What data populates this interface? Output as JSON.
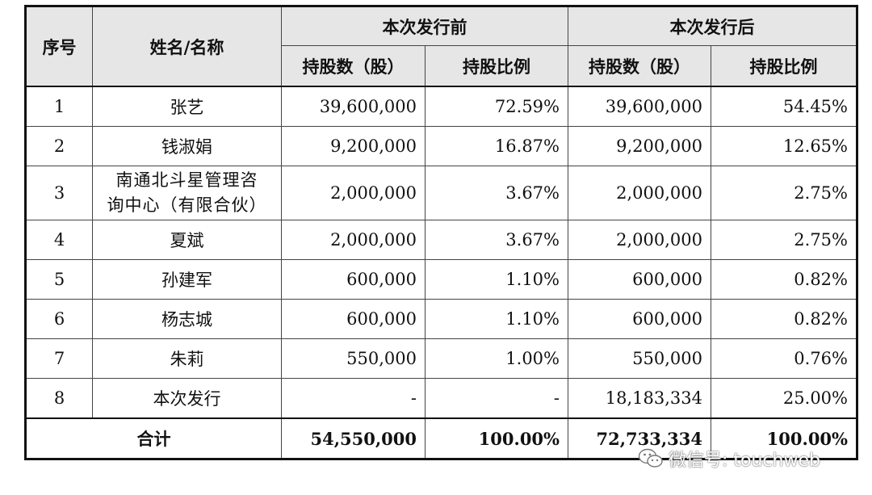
{
  "table": {
    "headers": {
      "index": "序号",
      "name": "姓名/名称",
      "before_group": "本次发行前",
      "after_group": "本次发行后",
      "shares_col": "持股数（股）",
      "ratio_col": "持股比例"
    },
    "rows": [
      {
        "no": "1",
        "name": "张艺",
        "before_shares": "39,600,000",
        "before_ratio": "72.59%",
        "after_shares": "39,600,000",
        "after_ratio": "54.45%"
      },
      {
        "no": "2",
        "name": "钱淑娟",
        "before_shares": "9,200,000",
        "before_ratio": "16.87%",
        "after_shares": "9,200,000",
        "after_ratio": "12.65%"
      },
      {
        "no": "3",
        "name_line1": "南通北斗星管理咨",
        "name_line2": "询中心（有限合伙）",
        "before_shares": "2,000,000",
        "before_ratio": "3.67%",
        "after_shares": "2,000,000",
        "after_ratio": "2.75%"
      },
      {
        "no": "4",
        "name": "夏斌",
        "before_shares": "2,000,000",
        "before_ratio": "3.67%",
        "after_shares": "2,000,000",
        "after_ratio": "2.75%"
      },
      {
        "no": "5",
        "name": "孙建军",
        "before_shares": "600,000",
        "before_ratio": "1.10%",
        "after_shares": "600,000",
        "after_ratio": "0.82%"
      },
      {
        "no": "6",
        "name": "杨志城",
        "before_shares": "600,000",
        "before_ratio": "1.10%",
        "after_shares": "600,000",
        "after_ratio": "0.82%"
      },
      {
        "no": "7",
        "name": "朱莉",
        "before_shares": "550,000",
        "before_ratio": "1.00%",
        "after_shares": "550,000",
        "after_ratio": "0.76%"
      },
      {
        "no": "8",
        "name": "本次发行",
        "before_shares": "-",
        "before_ratio": "-",
        "after_shares": "18,183,334",
        "after_ratio": "25.00%"
      }
    ],
    "total": {
      "label": "合计",
      "before_shares": "54,550,000",
      "before_ratio": "100.00%",
      "after_shares": "72,733,334",
      "after_ratio": "100.00%"
    }
  },
  "watermark": {
    "icon": "wechat-icon",
    "text": "微信号: touchweb"
  }
}
